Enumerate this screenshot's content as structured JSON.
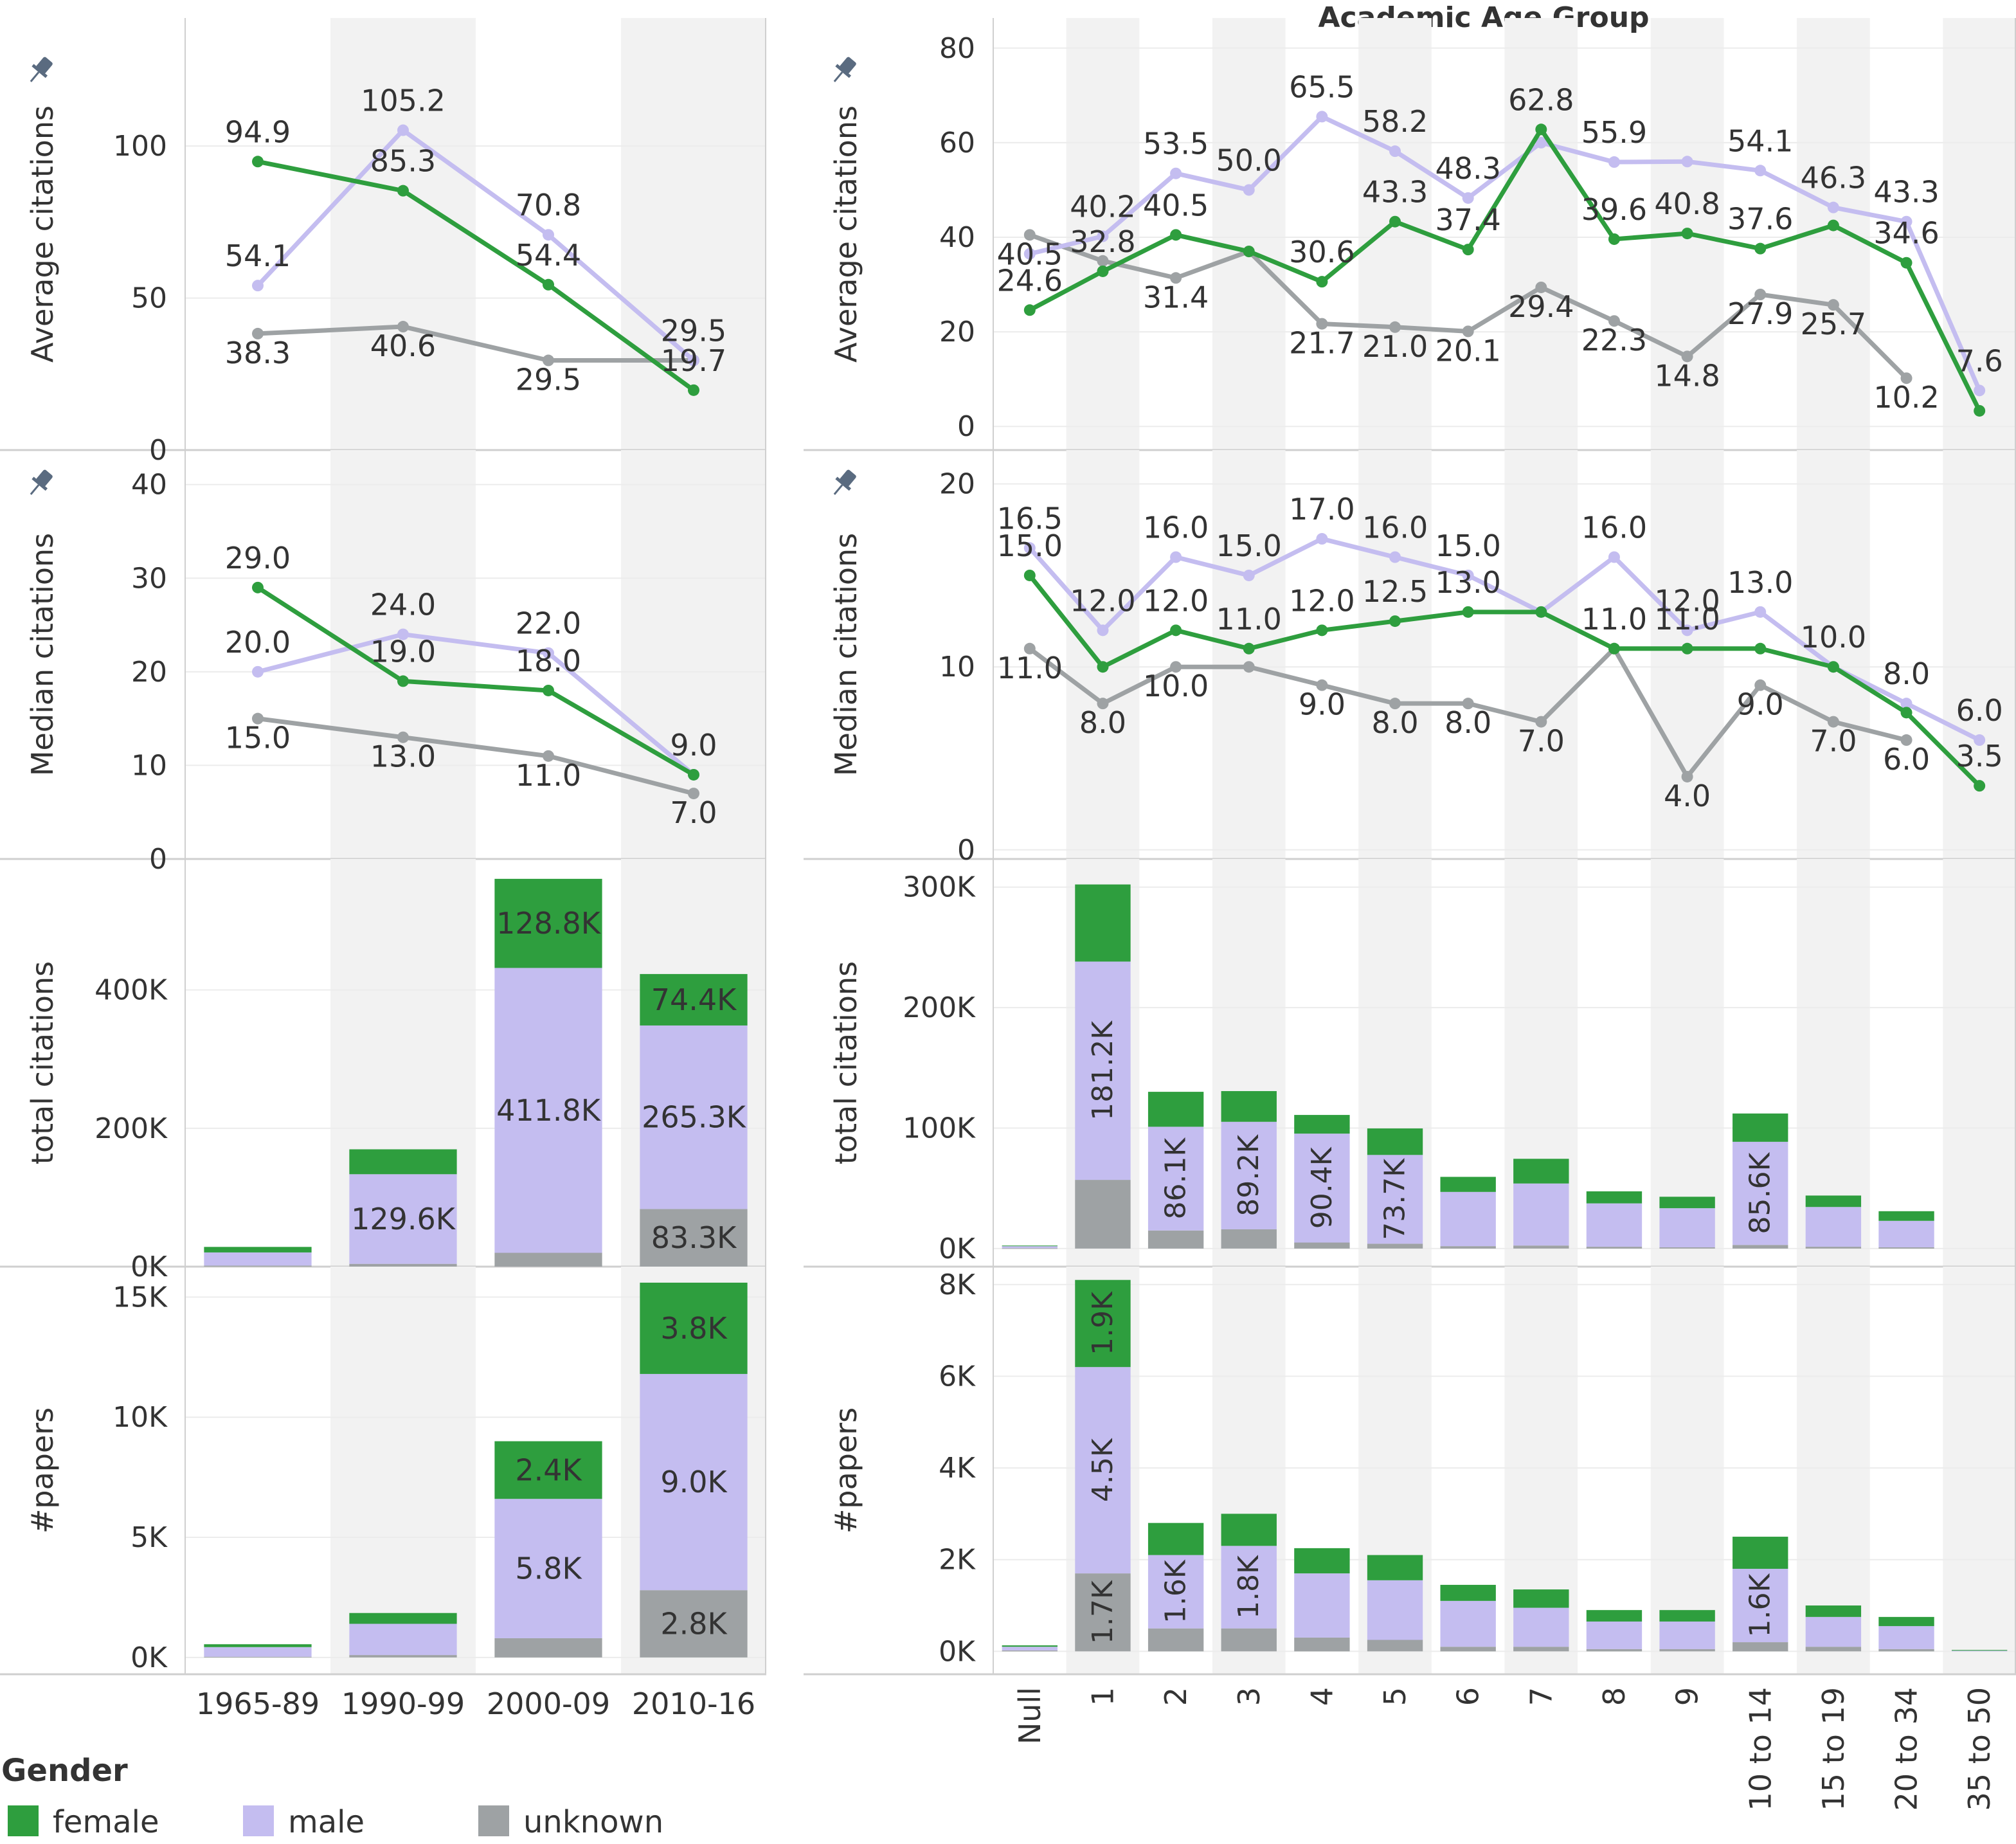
{
  "colors": {
    "female": "#2e9e3e",
    "male": "#c4bdf0",
    "unknown": "#9ea2a4",
    "band": "#f2f2f2",
    "grid": "#ececec",
    "border": "#cfcfcf",
    "text": "#333333",
    "pin": "#5a6b80"
  },
  "header": {
    "right_title": "Academic Age Group"
  },
  "legend": {
    "title": "Gender",
    "items": [
      "female",
      "male",
      "unknown"
    ]
  },
  "chart_data": [
    {
      "id": "left-avg",
      "type": "line",
      "ylabel": "Average citations",
      "categories": [
        "1965-89",
        "1990-99",
        "2000-09",
        "2010-16"
      ],
      "yticks": [
        0,
        50,
        100
      ],
      "ytick_labels": [
        "0",
        "50",
        "100"
      ],
      "ylim": [
        0,
        140
      ],
      "pinned": true,
      "series": [
        {
          "name": "female",
          "values": [
            94.9,
            85.3,
            54.4,
            19.7
          ],
          "labels": [
            "94.9",
            "85.3",
            "54.4",
            "19.7"
          ]
        },
        {
          "name": "male",
          "values": [
            54.1,
            105.2,
            70.8,
            29.5
          ],
          "labels": [
            "54.1",
            "105.2",
            "70.8",
            "29.5"
          ]
        },
        {
          "name": "unknown",
          "values": [
            38.3,
            40.6,
            29.5,
            29.5
          ],
          "labels": [
            "38.3",
            "40.6",
            "29.5",
            ""
          ]
        }
      ]
    },
    {
      "id": "left-median",
      "type": "line",
      "ylabel": "Median citations",
      "categories": [
        "1965-89",
        "1990-99",
        "2000-09",
        "2010-16"
      ],
      "yticks": [
        0,
        10,
        20,
        30,
        40
      ],
      "ytick_labels": [
        "0",
        "10",
        "20",
        "30",
        "40"
      ],
      "ylim": [
        0,
        43
      ],
      "pinned": true,
      "series": [
        {
          "name": "female",
          "values": [
            29.0,
            19.0,
            18.0,
            9.0
          ],
          "labels": [
            "29.0",
            "19.0",
            "18.0",
            ""
          ]
        },
        {
          "name": "male",
          "values": [
            20.0,
            24.0,
            22.0,
            9.0
          ],
          "labels": [
            "20.0",
            "24.0",
            "22.0",
            "9.0"
          ]
        },
        {
          "name": "unknown",
          "values": [
            15.0,
            13.0,
            11.0,
            7.0
          ],
          "labels": [
            "15.0",
            "13.0",
            "11.0",
            "7.0"
          ]
        }
      ]
    },
    {
      "id": "left-total",
      "type": "bar",
      "stacked": true,
      "ylabel": "total citations",
      "categories": [
        "1965-89",
        "1990-99",
        "2000-09",
        "2010-16"
      ],
      "yticks": [
        0,
        200000,
        400000
      ],
      "ytick_labels": [
        "0K",
        "200K",
        "400K"
      ],
      "ylim": [
        0,
        580000
      ],
      "pinned": false,
      "series": [
        {
          "name": "unknown",
          "values": [
            1500,
            4000,
            20000,
            83300
          ],
          "labels": [
            "",
            "",
            "",
            "83.3K"
          ]
        },
        {
          "name": "male",
          "values": [
            19000,
            129600,
            411800,
            265300
          ],
          "labels": [
            "",
            "129.6K",
            "411.8K",
            "265.3K"
          ]
        },
        {
          "name": "female",
          "values": [
            8000,
            36000,
            128800,
            74400
          ],
          "labels": [
            "",
            "",
            "128.8K",
            "74.4K"
          ]
        }
      ]
    },
    {
      "id": "left-papers",
      "type": "bar",
      "stacked": true,
      "ylabel": "#papers",
      "categories": [
        "1965-89",
        "1990-99",
        "2000-09",
        "2010-16"
      ],
      "yticks": [
        0,
        5000,
        10000,
        15000
      ],
      "ytick_labels": [
        "0K",
        "5K",
        "10K",
        "15K"
      ],
      "ylim": [
        -700,
        16000
      ],
      "pinned": false,
      "series": [
        {
          "name": "unknown",
          "values": [
            30,
            100,
            800,
            2800
          ],
          "labels": [
            "",
            "",
            "",
            "2.8K"
          ]
        },
        {
          "name": "male",
          "values": [
            400,
            1300,
            5800,
            9000
          ],
          "labels": [
            "",
            "",
            "5.8K",
            "9.0K"
          ]
        },
        {
          "name": "female",
          "values": [
            120,
            450,
            2400,
            3800
          ],
          "labels": [
            "",
            "",
            "2.4K",
            "3.8K"
          ]
        }
      ]
    },
    {
      "id": "right-avg",
      "type": "line",
      "ylabel": "Average citations",
      "categories": [
        "Null",
        "1",
        "2",
        "3",
        "4",
        "5",
        "6",
        "7",
        "8",
        "9",
        "10 to 14",
        "15 to 19",
        "20 to 34",
        "35 to 50"
      ],
      "yticks": [
        0,
        20,
        40,
        60,
        80
      ],
      "ytick_labels": [
        "0",
        "20",
        "40",
        "60",
        "80"
      ],
      "ylim": [
        -5,
        85
      ],
      "pinned": true,
      "series": [
        {
          "name": "female",
          "values": [
            24.6,
            32.8,
            40.5,
            37.0,
            30.6,
            43.3,
            37.4,
            62.8,
            39.6,
            40.8,
            37.6,
            42.5,
            34.6,
            3.3
          ],
          "labels": [
            "24.6",
            "32.8",
            "40.5",
            "",
            "30.6",
            "43.3",
            "37.4",
            "62.8",
            "39.6",
            "40.8",
            "37.6",
            "",
            "34.6",
            ""
          ]
        },
        {
          "name": "male",
          "values": [
            36.5,
            40.2,
            53.5,
            50.0,
            65.5,
            58.2,
            48.3,
            60.0,
            55.9,
            56.0,
            54.1,
            46.3,
            43.3,
            7.6
          ],
          "labels": [
            "",
            "40.2",
            "53.5",
            "50.0",
            "65.5",
            "58.2",
            "48.3",
            "",
            "55.9",
            "",
            "54.1",
            "46.3",
            "43.3",
            "7.6"
          ]
        },
        {
          "name": "unknown",
          "values": [
            40.5,
            35.0,
            31.4,
            37.0,
            21.7,
            21.0,
            20.1,
            29.4,
            22.3,
            14.8,
            27.9,
            25.7,
            10.2,
            null
          ],
          "labels": [
            "40.5",
            "",
            "31.4",
            "",
            "21.7",
            "21.0",
            "20.1",
            "29.4",
            "22.3",
            "14.8",
            "27.9",
            "25.7",
            "10.2",
            ""
          ]
        }
      ]
    },
    {
      "id": "right-median",
      "type": "line",
      "ylabel": "Median citations",
      "categories": [
        "Null",
        "1",
        "2",
        "3",
        "4",
        "5",
        "6",
        "7",
        "8",
        "9",
        "10 to 14",
        "15 to 19",
        "20 to 34",
        "35 to 50"
      ],
      "yticks": [
        0,
        10,
        20
      ],
      "ytick_labels": [
        "0",
        "10",
        "20"
      ],
      "ylim": [
        -0.5,
        21.5
      ],
      "pinned": true,
      "series": [
        {
          "name": "female",
          "values": [
            15.0,
            10.0,
            12.0,
            11.0,
            12.0,
            12.5,
            13.0,
            13.0,
            11.0,
            11.0,
            11.0,
            10.0,
            7.5,
            3.5
          ],
          "labels": [
            "15.0",
            "",
            "12.0",
            "11.0",
            "12.0",
            "12.5",
            "13.0",
            "",
            "11.0",
            "11.0",
            "",
            "10.0",
            "",
            "3.5"
          ]
        },
        {
          "name": "male",
          "values": [
            16.5,
            12.0,
            16.0,
            15.0,
            17.0,
            16.0,
            15.0,
            13.0,
            16.0,
            12.0,
            13.0,
            10.0,
            8.0,
            6.0
          ],
          "labels": [
            "16.5",
            "12.0",
            "16.0",
            "15.0",
            "17.0",
            "16.0",
            "15.0",
            "",
            "16.0",
            "12.0",
            "13.0",
            "",
            "8.0",
            "6.0"
          ]
        },
        {
          "name": "unknown",
          "values": [
            11.0,
            8.0,
            10.0,
            10.0,
            9.0,
            8.0,
            8.0,
            7.0,
            11.0,
            4.0,
            9.0,
            7.0,
            6.0,
            null
          ],
          "labels": [
            "11.0",
            "8.0",
            "10.0",
            "",
            "9.0",
            "8.0",
            "8.0",
            "7.0",
            "",
            "4.0",
            "9.0",
            "7.0",
            "6.0",
            ""
          ]
        }
      ]
    },
    {
      "id": "right-total",
      "type": "bar",
      "stacked": true,
      "ylabel": "total citations",
      "categories": [
        "Null",
        "1",
        "2",
        "3",
        "4",
        "5",
        "6",
        "7",
        "8",
        "9",
        "10 to 14",
        "15 to 19",
        "20 to 34",
        "35 to 50"
      ],
      "yticks": [
        0,
        100000,
        200000,
        300000
      ],
      "ytick_labels": [
        "0K",
        "100K",
        "200K",
        "300K"
      ],
      "ylim": [
        -15000,
        318000
      ],
      "pinned": false,
      "series": [
        {
          "name": "unknown",
          "values": [
            300,
            57000,
            15000,
            16000,
            5000,
            4000,
            2000,
            2500,
            1500,
            1000,
            3000,
            1500,
            1000,
            0
          ],
          "labels": [
            "",
            "",
            "",
            "",
            "",
            "",
            "",
            "",
            "",
            "",
            "",
            "",
            "",
            ""
          ]
        },
        {
          "name": "male",
          "values": [
            1700,
            181200,
            86100,
            89200,
            90400,
            73700,
            45000,
            51500,
            36000,
            32500,
            85600,
            33000,
            22000,
            0
          ],
          "labels": [
            "",
            "181.2K",
            "86.1K",
            "89.2K",
            "90.4K",
            "73.7K",
            "",
            "",
            "",
            "",
            "85.6K",
            "",
            "",
            ""
          ]
        },
        {
          "name": "female",
          "values": [
            500,
            64000,
            29000,
            25500,
            15500,
            22000,
            12500,
            20500,
            10000,
            9500,
            23500,
            9500,
            8000,
            0
          ],
          "labels": [
            "",
            "",
            "",
            "",
            "",
            "",
            "",
            "",
            "",
            "",
            "",
            "",
            "",
            ""
          ]
        }
      ]
    },
    {
      "id": "right-papers",
      "type": "bar",
      "stacked": true,
      "ylabel": "#papers",
      "categories": [
        "Null",
        "1",
        "2",
        "3",
        "4",
        "5",
        "6",
        "7",
        "8",
        "9",
        "10 to 14",
        "15 to 19",
        "20 to 34",
        "35 to 50"
      ],
      "yticks": [
        0,
        2000,
        4000,
        6000,
        8000
      ],
      "ytick_labels": [
        "0K",
        "2K",
        "4K",
        "6K",
        "8K"
      ],
      "ylim": [
        -500,
        8250
      ],
      "pinned": false,
      "series": [
        {
          "name": "unknown",
          "values": [
            20,
            1700,
            500,
            500,
            300,
            250,
            100,
            100,
            50,
            50,
            200,
            100,
            50,
            0
          ],
          "labels": [
            "",
            "1.7K",
            "",
            "",
            "",
            "",
            "",
            "",
            "",
            "",
            "",
            "",
            "",
            ""
          ]
        },
        {
          "name": "male",
          "values": [
            80,
            4500,
            1600,
            1800,
            1400,
            1300,
            1000,
            850,
            600,
            600,
            1600,
            650,
            500,
            15
          ],
          "labels": [
            "",
            "4.5K",
            "1.6K",
            "1.8K",
            "",
            "",
            "",
            "",
            "",
            "",
            "1.6K",
            "",
            "",
            ""
          ]
        },
        {
          "name": "female",
          "values": [
            30,
            1900,
            700,
            700,
            550,
            550,
            350,
            400,
            250,
            250,
            700,
            250,
            200,
            15
          ],
          "labels": [
            "",
            "1.9K",
            "",
            "",
            "",
            "",
            "",
            "",
            "",
            "",
            "",
            "",
            "",
            ""
          ]
        }
      ]
    }
  ]
}
